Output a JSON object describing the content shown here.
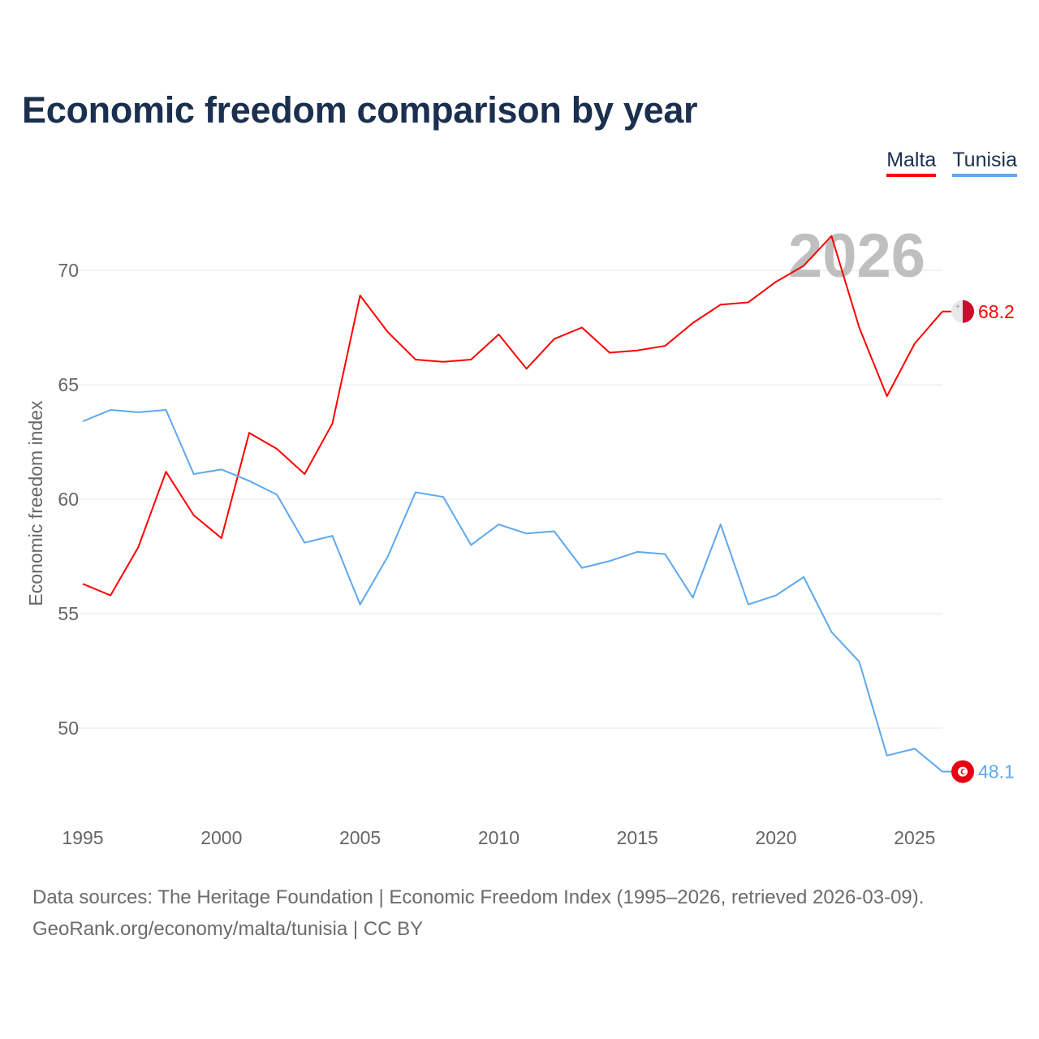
{
  "chart_data": {
    "type": "line",
    "title": "Economic freedom comparison by year",
    "ylabel": "Economic freedom index",
    "xlabel": "",
    "xlim": [
      1995,
      2026
    ],
    "ylim": [
      46.5,
      72
    ],
    "x_ticks": [
      1995,
      2000,
      2005,
      2010,
      2015,
      2020,
      2025
    ],
    "y_ticks": [
      50,
      55,
      60,
      65,
      70
    ],
    "grid": true,
    "legend_position": "top-right",
    "year_label": "2026",
    "x": [
      1995,
      1996,
      1997,
      1998,
      1999,
      2000,
      2001,
      2002,
      2003,
      2004,
      2005,
      2006,
      2007,
      2008,
      2009,
      2010,
      2011,
      2012,
      2013,
      2014,
      2015,
      2016,
      2017,
      2018,
      2019,
      2020,
      2021,
      2022,
      2023,
      2024,
      2025,
      2026
    ],
    "series": [
      {
        "name": "Malta",
        "color": "#ff0000",
        "end_label": "68.2",
        "flag": "malta-flag",
        "values": [
          56.3,
          55.8,
          57.9,
          61.2,
          59.3,
          58.3,
          62.9,
          62.2,
          61.1,
          63.3,
          68.9,
          67.3,
          66.1,
          66.0,
          66.1,
          67.2,
          65.7,
          67.0,
          67.5,
          66.4,
          66.5,
          66.7,
          67.7,
          68.5,
          68.6,
          69.5,
          70.2,
          71.5,
          67.5,
          64.5,
          66.8,
          68.2
        ]
      },
      {
        "name": "Tunisia",
        "color": "#5ea8ee",
        "end_label": "48.1",
        "flag": "tunisia-flag",
        "values": [
          63.4,
          63.9,
          63.8,
          63.9,
          61.1,
          61.3,
          60.8,
          60.2,
          58.1,
          58.4,
          55.4,
          57.5,
          60.3,
          60.1,
          58.0,
          58.9,
          58.5,
          58.6,
          57.0,
          57.3,
          57.7,
          57.6,
          55.7,
          58.9,
          55.4,
          55.8,
          56.6,
          54.2,
          52.9,
          48.8,
          49.1,
          48.1
        ]
      }
    ]
  },
  "source": {
    "line1": "Data sources: The Heritage Foundation | Economic Freedom Index (1995–2026, retrieved 2026-03-09).",
    "line2": "GeoRank.org/economy/malta/tunisia | CC BY"
  }
}
